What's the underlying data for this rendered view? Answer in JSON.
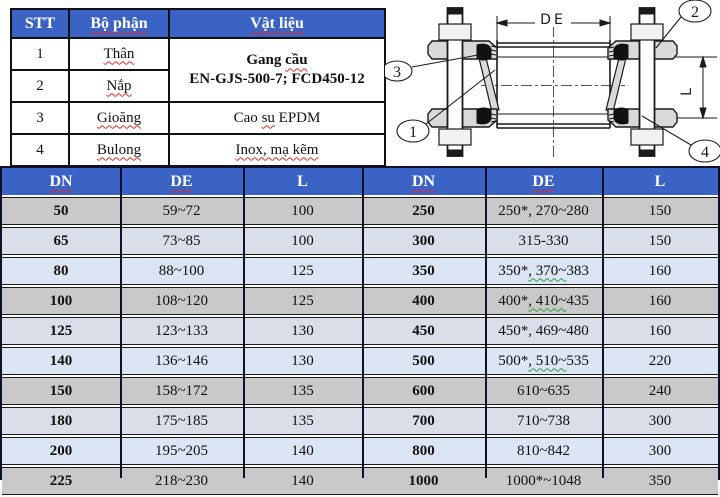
{
  "parts_table": {
    "headers": {
      "stt": "STT",
      "part": "Bộ phận",
      "material": "Vật liệu"
    },
    "rows": [
      {
        "stt": "1",
        "part": "Thân"
      },
      {
        "stt": "2",
        "part": "Nắp"
      },
      {
        "stt": "3",
        "part": "Gioăng",
        "material_parts": [
          "Cao ",
          "su",
          " EPDM"
        ]
      },
      {
        "stt": "4",
        "part": "Bulong",
        "material": "Inox, mạ kẽm"
      }
    ],
    "merged_material": {
      "line1_pre": "Gang ",
      "line1_mark": "cầu",
      "line2": "EN-GJS-500-7; FCD450-12"
    }
  },
  "diagram": {
    "dim_labels": {
      "width": "DE",
      "height": "L"
    },
    "callouts": [
      "1",
      "2",
      "3",
      "4"
    ]
  },
  "dimension_table": {
    "headers": [
      "DN",
      "DE",
      "L",
      "DN",
      "DE",
      "L"
    ],
    "left_rows": [
      [
        "50",
        "59~72",
        "100"
      ],
      [
        "65",
        "73~85",
        "100"
      ],
      [
        "80",
        "88~100",
        "125"
      ],
      [
        "100",
        "108~120",
        "125"
      ],
      [
        "125",
        "123~133",
        "130"
      ],
      [
        "140",
        "136~146",
        "130"
      ],
      [
        "150",
        "158~172",
        "135"
      ],
      [
        "180",
        "175~185",
        "135"
      ],
      [
        "200",
        "195~205",
        "140"
      ],
      [
        "225",
        "218~230",
        "140"
      ]
    ],
    "right_rows": [
      [
        "250",
        "250*, 270~280",
        "150"
      ],
      [
        "300",
        "315-330",
        "150"
      ],
      [
        "350",
        {
          "pre": "350*",
          "mark": ", 370~",
          "post": "383"
        },
        "160"
      ],
      [
        "400",
        {
          "pre": "400*",
          "mark": ", 410~",
          "post": "435"
        },
        "160"
      ],
      [
        "450",
        "450*, 469~480",
        "160"
      ],
      [
        "500",
        {
          "pre": "500*",
          "mark": ", 510~",
          "post": "535"
        },
        "220"
      ],
      [
        "600",
        "610~635",
        "240"
      ],
      [
        "700",
        "710~738",
        "300"
      ],
      [
        "800",
        "810~842",
        "300"
      ],
      [
        "1000",
        "1000*~1048",
        "350"
      ]
    ]
  },
  "colors": {
    "header_blue": "#3a63c5",
    "row_gray": "#c9c9c9",
    "row_light_a": "#d9dee8",
    "row_light_b": "#dce5f3",
    "border_dark": "#10102a",
    "squiggle_red": "#e02b2b",
    "squiggle_green": "#2f9e41"
  }
}
